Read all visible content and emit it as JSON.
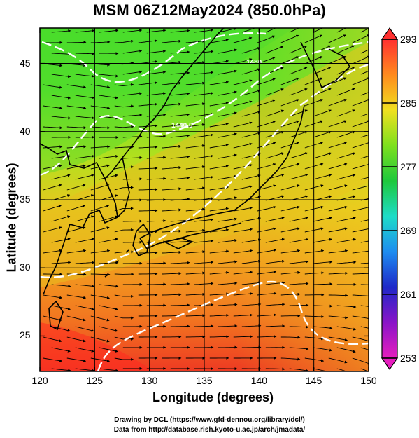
{
  "title": "MSM 06Z12May2024 (850.0hPa)",
  "x_axis": {
    "label": "Longitude (degrees)",
    "ticks": [
      "120",
      "125",
      "130",
      "135",
      "140",
      "145",
      "150"
    ]
  },
  "y_axis": {
    "label": "Latitude  (degrees)",
    "ticks": [
      "25",
      "30",
      "35",
      "40",
      "45"
    ]
  },
  "colorbar": {
    "labels": [
      "293",
      "285",
      "277",
      "269",
      "261",
      "253"
    ],
    "colors": [
      "#ff3030",
      "#ff8a1e",
      "#f0e020",
      "#7ee01e",
      "#1ec83c",
      "#1edcc8",
      "#1e8cf0",
      "#1e28c8",
      "#8a14c8",
      "#e61ebe"
    ]
  },
  "contours": [
    "1440.0",
    "1480"
  ],
  "credits": {
    "line1": "Drawing by DCL (https://www.gfd-dennou.org/library/dcl/)",
    "line2": "Data from http://database.rish.kyoto-u.ac.jp/arch/jmadata/"
  },
  "chart_data": {
    "type": "heatmap",
    "title": "MSM 06Z12May2024 (850.0hPa)",
    "xlabel": "Longitude (degrees)",
    "ylabel": "Latitude  (degrees)",
    "xlim": [
      120,
      150
    ],
    "ylim": [
      22.4,
      47.6
    ],
    "xticks": [
      120,
      125,
      130,
      135,
      140,
      145,
      150
    ],
    "yticks": [
      25,
      30,
      35,
      40,
      45
    ],
    "colorbar_range": [
      253,
      293
    ],
    "colorbar_ticks": [
      293,
      285,
      277,
      269,
      261,
      253
    ],
    "grid": true,
    "overlays": [
      "streamlines",
      "contours",
      "coastlines"
    ]
  }
}
